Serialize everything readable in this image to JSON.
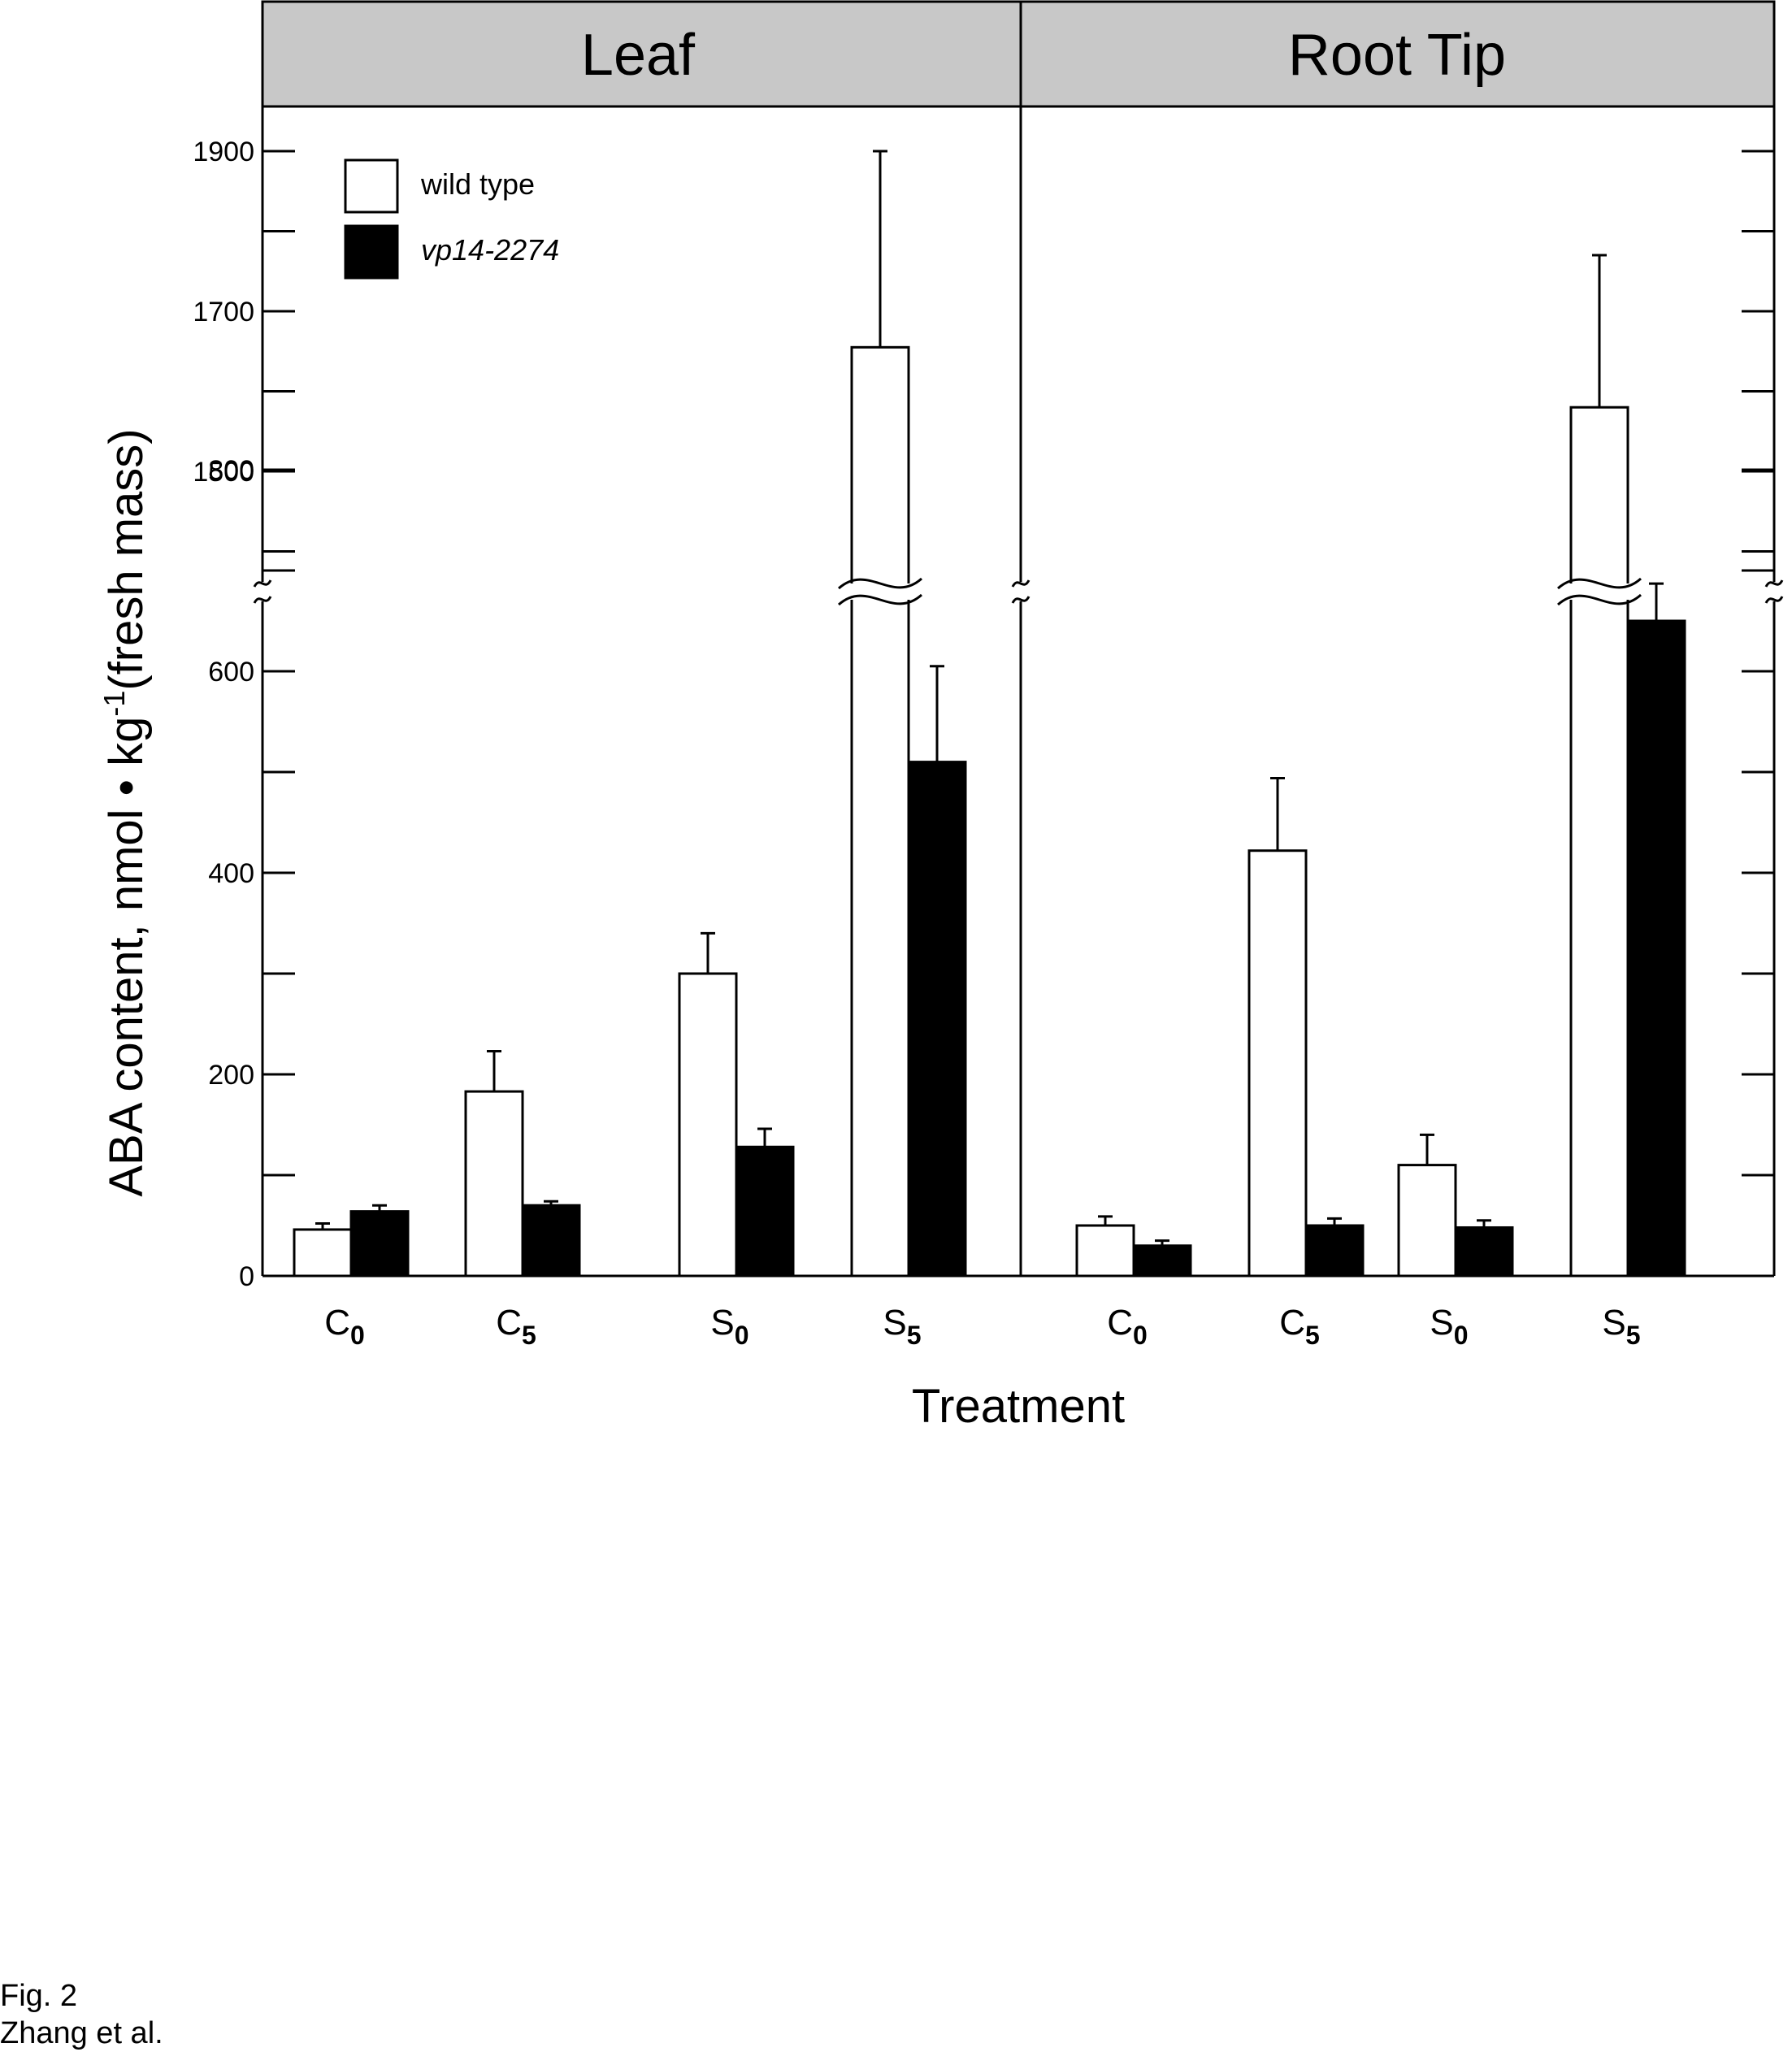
{
  "chart_data": {
    "type": "bar",
    "panels": [
      {
        "title": "Leaf",
        "categories": [
          {
            "letter": "C",
            "sub": "0"
          },
          {
            "letter": "C",
            "sub": "5"
          },
          {
            "letter": "S",
            "sub": "0"
          },
          {
            "letter": "S",
            "sub": "5"
          }
        ],
        "series": [
          {
            "name": "wild type",
            "values": [
              46,
              183,
              300,
              1655
            ],
            "errors": [
              6,
              40,
              40,
              245
            ]
          },
          {
            "name": "vp14-2274",
            "values": [
              64,
              70,
              128,
              510
            ],
            "errors": [
              6,
              4,
              18,
              95
            ]
          }
        ]
      },
      {
        "title": "Root Tip",
        "categories": [
          {
            "letter": "C",
            "sub": "0"
          },
          {
            "letter": "C",
            "sub": "5"
          },
          {
            "letter": "S",
            "sub": "0"
          },
          {
            "letter": "S",
            "sub": "5"
          }
        ],
        "series": [
          {
            "name": "wild type",
            "values": [
              50,
              422,
              110,
              1580
            ],
            "errors": [
              9,
              72,
              30,
              190
            ]
          },
          {
            "name": "vp14-2274",
            "values": [
              30,
              50,
              48,
              650
            ],
            "errors": [
              5,
              7,
              7,
              37
            ]
          }
        ]
      }
    ],
    "ylabel": "ABA content, nmol • kg",
    "ylabel_superscript": "-1",
    "ylabel_suffix": "(fresh mass)",
    "xlabel": "Treatment",
    "y_axis_break": {
      "lower_range": [
        0,
        800
      ],
      "upper_range": [
        1400,
        2000
      ]
    },
    "lower_ticks": [
      0,
      200,
      400,
      600,
      800
    ],
    "upper_ticks": [
      1500,
      1700,
      1900
    ],
    "legend": [
      {
        "label": "wild type",
        "color": "#ffffff",
        "italic": false
      },
      {
        "label": "vp14-2274",
        "color": "#000000",
        "italic": true
      }
    ],
    "legend_position": "top-left",
    "grid": false
  },
  "caption": {
    "line1": "Fig. 2",
    "line2": "Zhang et al."
  }
}
